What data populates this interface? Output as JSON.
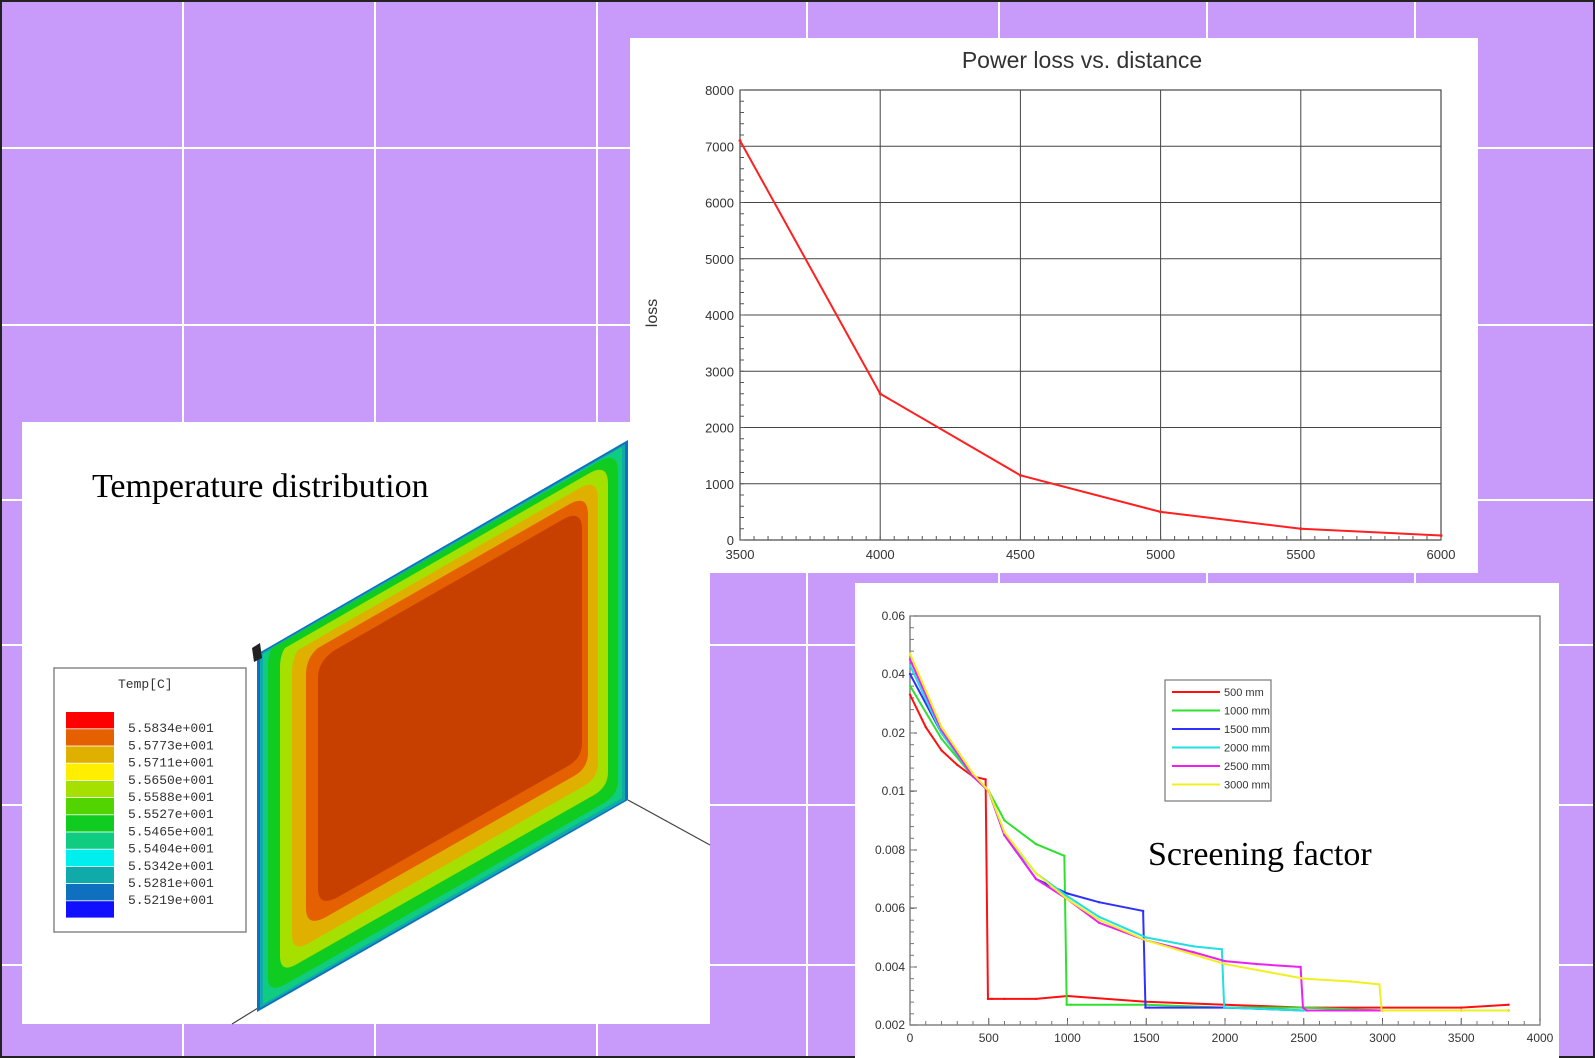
{
  "colors": {
    "background": "#c89bfb",
    "grid": "#ffffff",
    "panel": "#ffffff",
    "loss_line": "#ff2020"
  },
  "labels": {
    "temperature": "Temperature distribution",
    "screening": "Screening factor"
  },
  "legend_temp": {
    "title": "Temp[C]",
    "entries": [
      {
        "color": "#ff0000",
        "value": ""
      },
      {
        "color": "#e46000",
        "value": "5.5834e+001"
      },
      {
        "color": "#e0b000",
        "value": "5.5773e+001"
      },
      {
        "color": "#ffee00",
        "value": "5.5711e+001"
      },
      {
        "color": "#a6e000",
        "value": "5.5650e+001"
      },
      {
        "color": "#52d400",
        "value": "5.5588e+001"
      },
      {
        "color": "#10cc20",
        "value": "5.5527e+001"
      },
      {
        "color": "#10cc80",
        "value": "5.5465e+001"
      },
      {
        "color": "#00eeee",
        "value": "5.5404e+001"
      },
      {
        "color": "#10aaaa",
        "value": "5.5342e+001"
      },
      {
        "color": "#1070c0",
        "value": "5.5281e+001"
      },
      {
        "color": "#1010ff",
        "value": "5.5219e+001"
      }
    ]
  },
  "chart_data": [
    {
      "type": "line",
      "title": "Power loss vs. distance",
      "xlabel": "",
      "ylabel": "loss",
      "xlim": [
        3500,
        6000
      ],
      "ylim": [
        0,
        8000
      ],
      "x_ticks": [
        "3500",
        "4000",
        "4500",
        "5000",
        "5500",
        "6000"
      ],
      "y_ticks": [
        "0",
        "1000",
        "2000",
        "3000",
        "4000",
        "5000",
        "6000",
        "7000",
        "8000"
      ],
      "grid": true,
      "series": [
        {
          "color": "#ff2020",
          "x": [
            3500,
            4000,
            4500,
            5000,
            5500,
            6000
          ],
          "y": [
            7100,
            2600,
            1150,
            500,
            200,
            80
          ]
        }
      ]
    },
    {
      "type": "line",
      "title": "",
      "xlabel": "",
      "ylabel": "",
      "xlim": [
        0,
        4000
      ],
      "y_ticks": [
        "0.002",
        "0.004",
        "0.006",
        "0.008",
        "0.01",
        "0.02",
        "0.04",
        "0.06"
      ],
      "x_ticks": [
        "0",
        "500",
        "1000",
        "1500",
        "2000",
        "2500",
        "3000",
        "3500",
        "4000"
      ],
      "legend_position": "top-center",
      "series": [
        {
          "name": "500 mm",
          "color": "#ff1010",
          "x": [
            0,
            100,
            200,
            300,
            400,
            480,
            495,
            520,
            600,
            800,
            1000,
            1500,
            2000,
            2500,
            3000,
            3500,
            3800
          ],
          "y": [
            0.033,
            0.022,
            0.017,
            0.0145,
            0.0125,
            0.012,
            0.0029,
            0.0029,
            0.0029,
            0.0029,
            0.003,
            0.0028,
            0.0027,
            0.0026,
            0.0026,
            0.0026,
            0.0027
          ]
        },
        {
          "name": "1000 mm",
          "color": "#30e030",
          "x": [
            0,
            200,
            400,
            500,
            600,
            800,
            980,
            995,
            1020,
            1500,
            2000,
            2500,
            3000,
            3500,
            3800
          ],
          "y": [
            0.036,
            0.019,
            0.0125,
            0.01,
            0.009,
            0.0082,
            0.0078,
            0.0027,
            0.0027,
            0.0027,
            0.0026,
            0.0026,
            0.0025,
            0.0025,
            0.0025
          ]
        },
        {
          "name": "1500 mm",
          "color": "#3030ff",
          "x": [
            0,
            200,
            400,
            500,
            600,
            800,
            1000,
            1200,
            1480,
            1495,
            1520,
            2000,
            2500,
            3000,
            3500,
            3800
          ],
          "y": [
            0.04,
            0.02,
            0.0125,
            0.01,
            0.0085,
            0.007,
            0.0065,
            0.0062,
            0.0059,
            0.0026,
            0.0026,
            0.0026,
            0.0025,
            0.0025,
            0.0025,
            0.0025
          ]
        },
        {
          "name": "2000 mm",
          "color": "#20e0e0",
          "x": [
            0,
            200,
            400,
            500,
            600,
            800,
            1000,
            1200,
            1500,
            1800,
            1980,
            1995,
            2020,
            2500,
            3000,
            3500,
            3800
          ],
          "y": [
            0.043,
            0.02,
            0.0125,
            0.01,
            0.0085,
            0.0072,
            0.0064,
            0.0057,
            0.005,
            0.0047,
            0.0046,
            0.0026,
            0.0026,
            0.0025,
            0.0025,
            0.0025,
            0.0025
          ]
        },
        {
          "name": "2500 mm",
          "color": "#ee20ee",
          "x": [
            0,
            200,
            400,
            500,
            600,
            800,
            1000,
            1200,
            1500,
            1800,
            2000,
            2200,
            2480,
            2495,
            2520,
            3000,
            3500,
            3800
          ],
          "y": [
            0.045,
            0.021,
            0.0125,
            0.01,
            0.0085,
            0.007,
            0.0063,
            0.0055,
            0.0049,
            0.0045,
            0.0042,
            0.0041,
            0.004,
            0.0026,
            0.0025,
            0.0025,
            0.0025,
            0.0025
          ]
        },
        {
          "name": "3000 mm",
          "color": "#f0f020",
          "x": [
            0,
            200,
            400,
            500,
            600,
            800,
            1000,
            1200,
            1500,
            2000,
            2500,
            2800,
            2980,
            2995,
            3020,
            3500,
            3800
          ],
          "y": [
            0.047,
            0.022,
            0.013,
            0.01,
            0.0086,
            0.0072,
            0.0063,
            0.0056,
            0.0049,
            0.0041,
            0.0036,
            0.0035,
            0.0034,
            0.0025,
            0.0025,
            0.0025,
            0.0025
          ]
        }
      ]
    }
  ]
}
